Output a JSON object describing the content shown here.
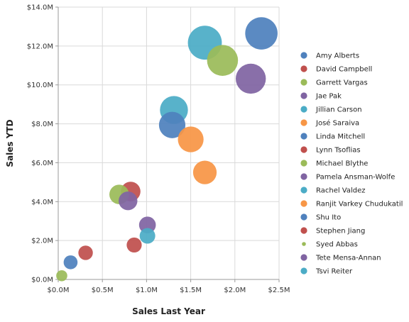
{
  "chart_data": {
    "type": "scatter",
    "title": "",
    "xlabel": "Sales Last Year",
    "ylabel": "Sales YTD",
    "xlim": [
      0,
      2.5
    ],
    "ylim": [
      0,
      14
    ],
    "x_ticks": [
      0,
      0.5,
      1,
      1.5,
      2,
      2.5
    ],
    "x_tick_labels": [
      "$0.0M",
      "$0.5M",
      "$1.0M",
      "$1.5M",
      "$2.0M",
      "$2.5M"
    ],
    "y_ticks": [
      0,
      2,
      4,
      6,
      8,
      10,
      12,
      14
    ],
    "y_tick_labels": [
      "$0.0M",
      "$2.0M",
      "$4.0M",
      "$6.0M",
      "$8.0M",
      "$10.0M",
      "$12.0M",
      "$14.0M"
    ],
    "grid": true,
    "legend_position": "right",
    "size_encoding": "bubble",
    "series": [
      {
        "name": "Amy Alberts",
        "color": "#4f81bd",
        "x": 0.14,
        "y": 0.88,
        "size": 1.1
      },
      {
        "name": "David Campbell",
        "color": "#c0504d",
        "x": 0.82,
        "y": 4.52,
        "size": 2.2
      },
      {
        "name": "Garrett Vargas",
        "color": "#9bbb59",
        "x": 1.86,
        "y": 11.26,
        "size": 5.5
      },
      {
        "name": "Jae Pak",
        "color": "#8064a2",
        "x": 2.18,
        "y": 10.32,
        "size": 5.2
      },
      {
        "name": "Jillian Carson",
        "color": "#4bacc6",
        "x": 1.31,
        "y": 8.71,
        "size": 4.5
      },
      {
        "name": "José Saraiva",
        "color": "#f79646",
        "x": 1.5,
        "y": 7.2,
        "size": 3.8
      },
      {
        "name": "Linda Mitchell",
        "color": "#4f81bd",
        "x": 2.3,
        "y": 12.65,
        "size": 6.0
      },
      {
        "name": "Lynn Tsoflias",
        "color": "#c0504d",
        "x": 0.31,
        "y": 1.37,
        "size": 1.2
      },
      {
        "name": "Michael Blythe",
        "color": "#9bbb59",
        "x": 0.69,
        "y": 4.37,
        "size": 2.2
      },
      {
        "name": "Pamela Ansman-Wolfe",
        "color": "#8064a2",
        "x": 1.01,
        "y": 2.8,
        "size": 1.6
      },
      {
        "name": "Rachel Valdez",
        "color": "#4bacc6",
        "x": 1.01,
        "y": 2.24,
        "size": 1.4
      },
      {
        "name": "Ranjit Varkey Chudukatil",
        "color": "#f79646",
        "x": 1.66,
        "y": 5.5,
        "size": 3.2
      },
      {
        "name": "Shu Ito",
        "color": "#4f81bd",
        "x": 1.29,
        "y": 7.94,
        "size": 4.0
      },
      {
        "name": "Stephen Jiang",
        "color": "#c0504d",
        "x": 0.86,
        "y": 1.77,
        "size": 1.3
      },
      {
        "name": "Syed Abbas",
        "color": "#9bbb59",
        "x": 0.04,
        "y": 0.19,
        "size": 0.7
      },
      {
        "name": "Tete Mensa-Annan",
        "color": "#8064a2",
        "x": 0.79,
        "y": 4.04,
        "size": 2.0
      },
      {
        "name": "Tsvi Reiter",
        "color": "#4bacc6",
        "x": 1.66,
        "y": 12.17,
        "size": 6.6
      }
    ]
  }
}
